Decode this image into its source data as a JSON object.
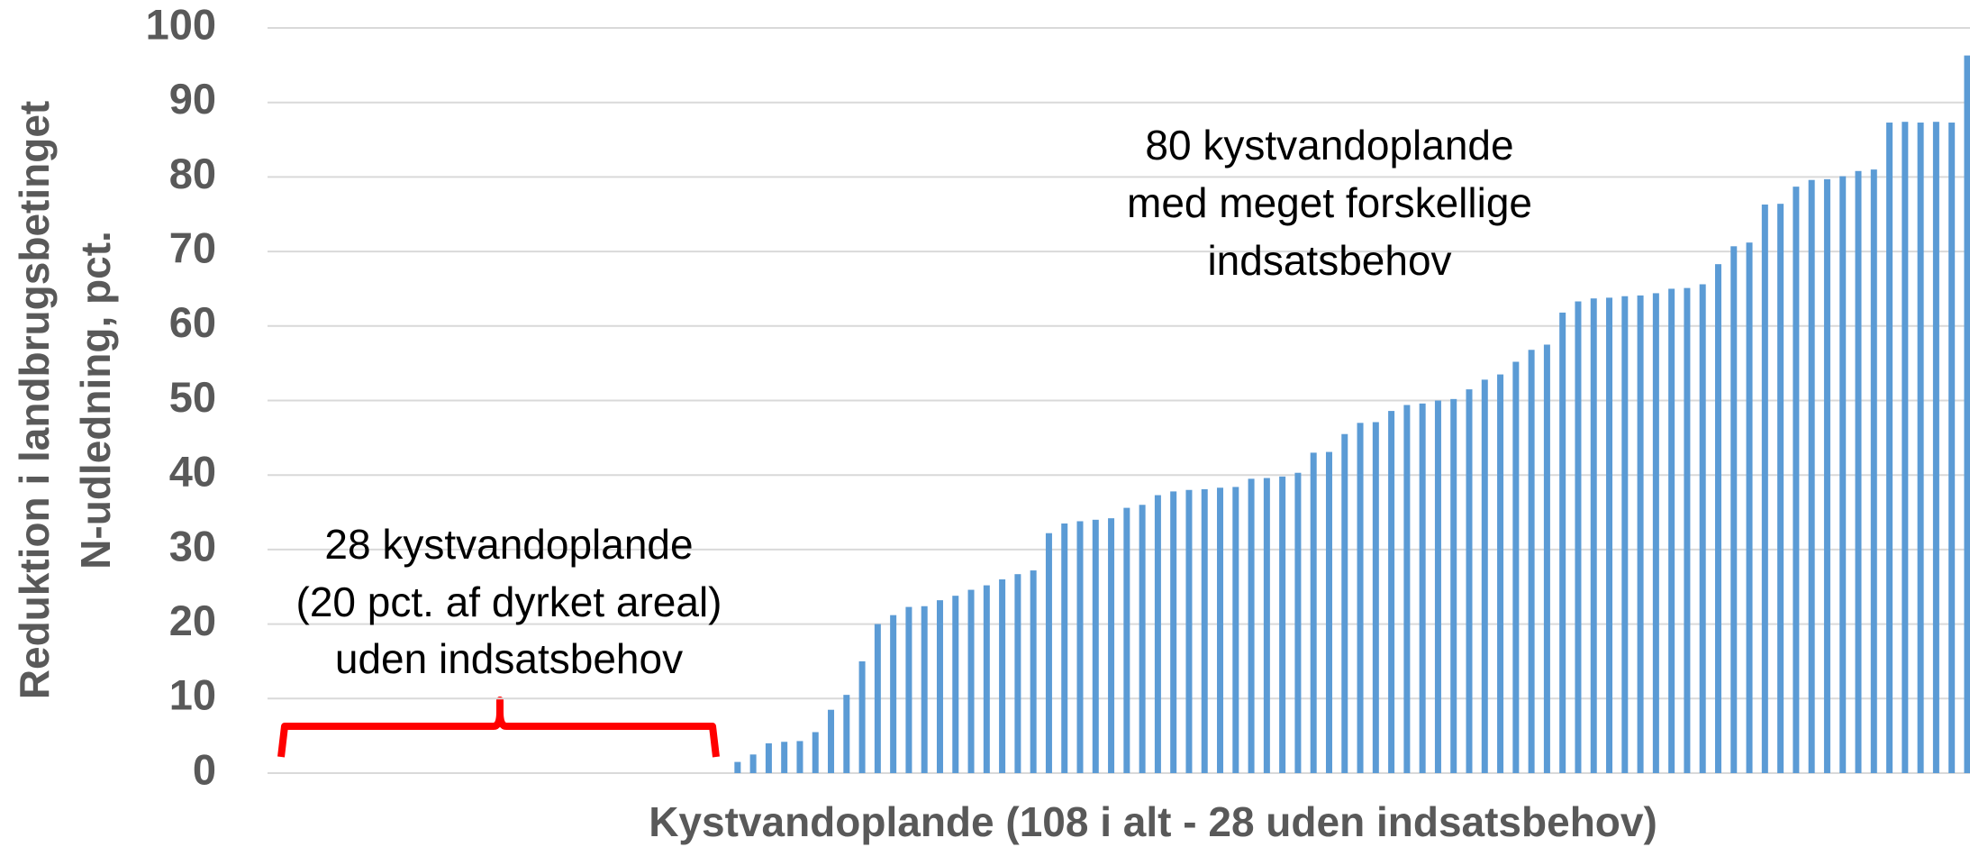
{
  "chart_data": {
    "type": "bar",
    "xlabel": "Kystvandoplande (108 i alt - 28 uden indsatsbehov)",
    "ylabel": [
      "Reduktion i landbrugsbetinget",
      "N-udledning, pct."
    ],
    "annotations": [
      {
        "lines": [
          "80 kystvandoplande",
          "med meget forskellige",
          "indsatsbehov"
        ]
      },
      {
        "lines": [
          "28 kystvandoplande",
          "(20 pct. af dyrket areal)",
          "uden indsatsbehov"
        ]
      }
    ],
    "categories": [
      null,
      null,
      null,
      null,
      null,
      null,
      null,
      null,
      null,
      null,
      null,
      null,
      null,
      null,
      null,
      null,
      null,
      null,
      null,
      null,
      null,
      null,
      null,
      null,
      null,
      null,
      null,
      null,
      null,
      null,
      null,
      null,
      null,
      null,
      null,
      null,
      null,
      null,
      null,
      null,
      null,
      null,
      null,
      null,
      null,
      null,
      null,
      null,
      null,
      null,
      null,
      null,
      null,
      null,
      null,
      null,
      null,
      null,
      null,
      null,
      null,
      null,
      null,
      null,
      null,
      null,
      null,
      null,
      null,
      null,
      null,
      null,
      null,
      null,
      null,
      null,
      null,
      null,
      null,
      null,
      null,
      null,
      null,
      null,
      null,
      null,
      null,
      null,
      null,
      null,
      null,
      null,
      null,
      null,
      null,
      null,
      null,
      null,
      null,
      null,
      null,
      null,
      null,
      null,
      null,
      null,
      null,
      null
    ],
    "values": [
      0,
      0,
      0,
      0,
      0,
      0,
      0,
      0,
      0,
      0,
      0,
      0,
      0,
      0,
      0,
      0,
      0,
      0,
      0,
      0,
      0,
      0,
      0,
      0,
      0,
      0,
      0,
      0,
      1.5,
      2.5,
      4,
      4.2,
      4.3,
      5.5,
      8.5,
      10.5,
      15,
      20,
      21.2,
      22.3,
      22.4,
      23.2,
      23.8,
      24.6,
      25.2,
      26,
      26.7,
      27.2,
      32.2,
      33.5,
      33.8,
      34,
      34.2,
      35.6,
      36,
      37.3,
      37.8,
      38,
      38.1,
      38.3,
      38.4,
      39.5,
      39.6,
      39.8,
      40.3,
      43,
      43.1,
      45.5,
      47,
      47.1,
      48.6,
      49.4,
      49.6,
      50,
      50.2,
      51.5,
      52.8,
      53.5,
      55.2,
      56.8,
      57.5,
      61.8,
      63.3,
      63.7,
      63.8,
      64,
      64.1,
      64.4,
      65,
      65.1,
      65.6,
      68.3,
      70.7,
      71.2,
      76.3,
      76.4,
      78.7,
      79.6,
      79.7,
      80.1,
      80.8,
      81,
      87.3,
      87.4,
      87.3,
      87.4,
      87.3,
      96.3
    ],
    "color": "#5b9bd5",
    "ylim": [
      0,
      100
    ],
    "yticks": [
      0,
      10,
      20,
      30,
      40,
      50,
      60,
      70,
      80,
      90,
      100
    ],
    "grid": true
  }
}
